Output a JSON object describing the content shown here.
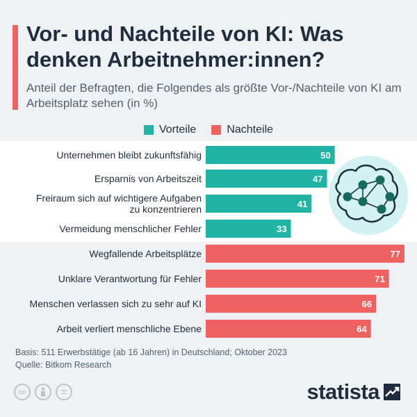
{
  "title": "Vor- und Nachteile von KI: Was denken Arbeitnehmer:innen?",
  "subtitle": "Anteil der Befragten, die Folgendes als größte Vor-/Nachteile von KI am Arbeitsplatz sehen (in %)",
  "legend": {
    "advantages": "Vorteile",
    "disadvantages": "Nachteile"
  },
  "colors": {
    "advantages": "#1fb4a3",
    "disadvantages": "#f06262",
    "accent": "#f06262"
  },
  "chart_data": {
    "type": "bar",
    "orientation": "horizontal",
    "title": "Vor- und Nachteile von KI: Was denken Arbeitnehmer:innen?",
    "xlabel": "",
    "ylabel": "",
    "xlim": [
      0,
      77
    ],
    "unit": "%",
    "series": [
      {
        "name": "Vorteile",
        "categories": [
          "Unternehmen bleibt zukunftsfähig",
          "Ersparnis von Arbeitszeit",
          "Freiraum sich auf wichtigere Aufgaben zu konzentrieren",
          "Vermeidung menschlicher Fehler"
        ],
        "values": [
          50,
          47,
          41,
          33
        ]
      },
      {
        "name": "Nachteile",
        "categories": [
          "Wegfallende Arbeitsplätze",
          "Unklare Verantwortung für Fehler",
          "Menschen verlassen sich zu sehr auf KI",
          "Arbeit verliert menschliche Ebene"
        ],
        "values": [
          77,
          71,
          66,
          64
        ]
      }
    ]
  },
  "footnote": {
    "basis": "Basis: 511 Erwerbstätige (ab 16 Jahren) in Deutschland; Oktober 2023",
    "source": "Quelle: Bitkom Research"
  },
  "license": {
    "cc": "cc",
    "equals": "="
  },
  "brand": "statista"
}
